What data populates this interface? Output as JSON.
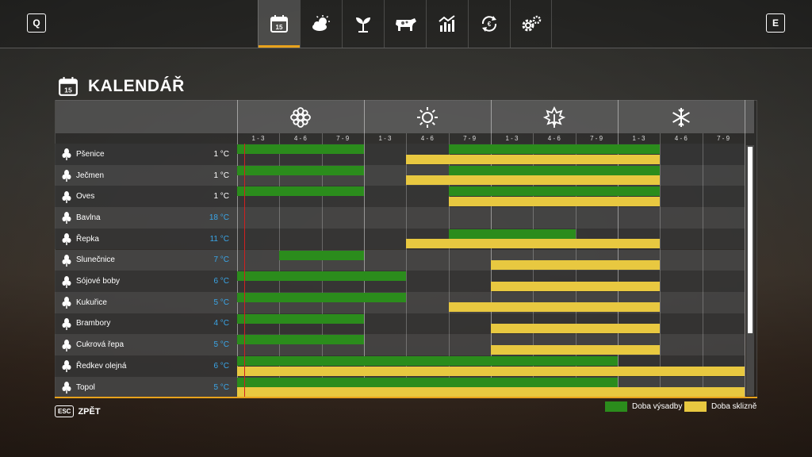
{
  "header": {
    "left_key": "Q",
    "right_key": "E",
    "tabs": [
      {
        "icon": "calendar-icon",
        "label": "15"
      },
      {
        "icon": "weather-icon"
      },
      {
        "icon": "plant-icon"
      },
      {
        "icon": "cow-icon"
      },
      {
        "icon": "stats-icon"
      },
      {
        "icon": "cycle-icon"
      },
      {
        "icon": "settings-icon"
      }
    ]
  },
  "title": {
    "icon_label": "15",
    "text": "KALENDÁŘ"
  },
  "seasons": [
    {
      "icon": "spring-flower-icon"
    },
    {
      "icon": "summer-sun-icon"
    },
    {
      "icon": "autumn-leaf-icon"
    },
    {
      "icon": "winter-snowflake-icon"
    }
  ],
  "months": [
    "1 - 3",
    "4 - 6",
    "7 - 9",
    "1 - 3",
    "4 - 6",
    "7 - 9",
    "1 - 3",
    "4 - 6",
    "7 - 9",
    "1 - 3",
    "4 - 6",
    "7 - 9"
  ],
  "crops": [
    {
      "name": "Pšenice",
      "temp": "1 °C",
      "temp_color": "#ffffff",
      "icon": "wheat-icon",
      "sow": [
        [
          0,
          3
        ],
        [
          5,
          10
        ]
      ],
      "harvest": [
        [
          4,
          10
        ]
      ]
    },
    {
      "name": "Ječmen",
      "temp": "1 °C",
      "temp_color": "#ffffff",
      "icon": "barley-icon",
      "sow": [
        [
          0,
          3
        ],
        [
          5,
          10
        ]
      ],
      "harvest": [
        [
          4,
          10
        ]
      ]
    },
    {
      "name": "Oves",
      "temp": "1 °C",
      "temp_color": "#ffffff",
      "icon": "oat-icon",
      "sow": [
        [
          0,
          3
        ],
        [
          5,
          10
        ]
      ],
      "harvest": [
        [
          5,
          10
        ]
      ]
    },
    {
      "name": "Bavlna",
      "temp": "18 °C",
      "temp_color": "#3aa6e8",
      "icon": "cotton-icon",
      "sow": [],
      "harvest": []
    },
    {
      "name": "Řepka",
      "temp": "11 °C",
      "temp_color": "#3aa6e8",
      "icon": "canola-icon",
      "sow": [
        [
          5,
          8
        ]
      ],
      "harvest": [
        [
          4,
          10
        ]
      ]
    },
    {
      "name": "Slunečnice",
      "temp": "7 °C",
      "temp_color": "#3aa6e8",
      "icon": "sunflower-icon",
      "sow": [
        [
          1,
          3
        ]
      ],
      "harvest": [
        [
          6,
          10
        ]
      ]
    },
    {
      "name": "Sójové boby",
      "temp": "6 °C",
      "temp_color": "#3aa6e8",
      "icon": "soybean-icon",
      "sow": [
        [
          0,
          4
        ]
      ],
      "harvest": [
        [
          6,
          10
        ]
      ]
    },
    {
      "name": "Kukuřice",
      "temp": "5 °C",
      "temp_color": "#3aa6e8",
      "icon": "corn-icon",
      "sow": [
        [
          0,
          4
        ]
      ],
      "harvest": [
        [
          5,
          10
        ]
      ]
    },
    {
      "name": "Brambory",
      "temp": "4 °C",
      "temp_color": "#3aa6e8",
      "icon": "potato-icon",
      "sow": [
        [
          0,
          3
        ]
      ],
      "harvest": [
        [
          6,
          10
        ]
      ]
    },
    {
      "name": "Cukrová řepa",
      "temp": "5 °C",
      "temp_color": "#3aa6e8",
      "icon": "sugarbeet-icon",
      "sow": [
        [
          0,
          3
        ]
      ],
      "harvest": [
        [
          6,
          10
        ]
      ]
    },
    {
      "name": "Ředkev olejná",
      "temp": "6 °C",
      "temp_color": "#3aa6e8",
      "icon": "oilradish-icon",
      "sow": [
        [
          0,
          9
        ]
      ],
      "harvest": [
        [
          0,
          12
        ]
      ]
    },
    {
      "name": "Topol",
      "temp": "5 °C",
      "temp_color": "#3aa6e8",
      "icon": "poplar-icon",
      "sow": [
        [
          0,
          9
        ]
      ],
      "harvest": [
        [
          0,
          12
        ]
      ]
    }
  ],
  "colors": {
    "sow": "#2b8c1c",
    "harvest": "#e8c840",
    "accent": "#e8a21c",
    "today": "#d02020"
  },
  "footer": {
    "esc_key": "ESC",
    "back_label": "ZPĚT"
  },
  "legend": {
    "sow_label": "Doba výsadby",
    "harvest_label": "Doba sklizně"
  }
}
